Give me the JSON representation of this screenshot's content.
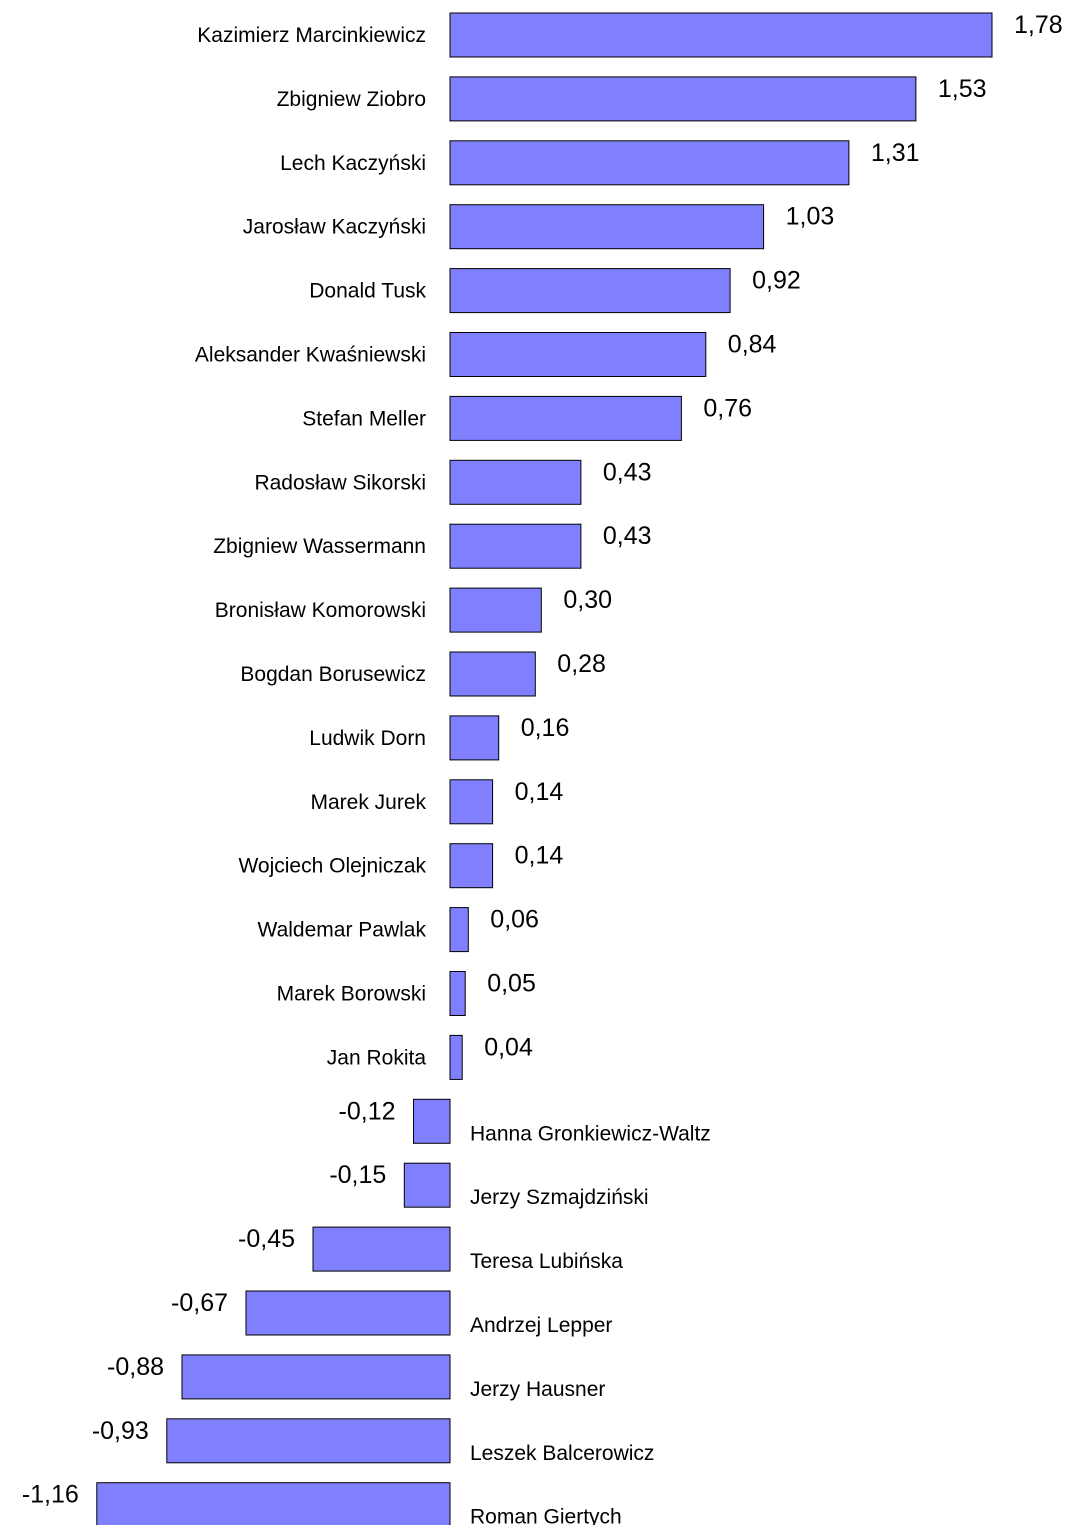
{
  "chart_data": {
    "type": "bar",
    "orientation": "horizontal",
    "title": "",
    "xlabel": "",
    "ylabel": "",
    "grid": false,
    "legend": "none",
    "bar_color": "#8080ff",
    "categories": [
      "Kazimierz Marcinkiewicz",
      "Zbigniew Ziobro",
      "Lech Kaczyński",
      "Jarosław Kaczyński",
      "Donald Tusk",
      "Aleksander Kwaśniewski",
      "Stefan Meller",
      "Radosław Sikorski",
      "Zbigniew Wassermann",
      "Bronisław Komorowski",
      "Bogdan Borusewicz",
      "Ludwik Dorn",
      "Marek Jurek",
      "Wojciech Olejniczak",
      "Waldemar Pawlak",
      "Marek Borowski",
      "Jan Rokita",
      "Hanna Gronkiewicz-Waltz",
      "Jerzy Szmajdziński",
      "Teresa Lubińska",
      "Andrzej Lepper",
      "Jerzy Hausner",
      "Leszek Balcerowicz",
      "Roman Giertych"
    ],
    "values": [
      1.78,
      1.53,
      1.31,
      1.03,
      0.92,
      0.84,
      0.76,
      0.43,
      0.43,
      0.3,
      0.28,
      0.16,
      0.14,
      0.14,
      0.06,
      0.05,
      0.04,
      -0.12,
      -0.15,
      -0.45,
      -0.67,
      -0.88,
      -0.93,
      -1.16
    ],
    "value_labels": [
      "1,78",
      "1,53",
      "1,31",
      "1,03",
      "0,92",
      "0,84",
      "0,76",
      "0,43",
      "0,43",
      "0,30",
      "0,28",
      "0,16",
      "0,14",
      "0,14",
      "0,06",
      "0,05",
      "0,04",
      "-0,12",
      "-0,15",
      "-0,45",
      "-0,67",
      "-0,88",
      "-0,93",
      "-1,16"
    ]
  }
}
